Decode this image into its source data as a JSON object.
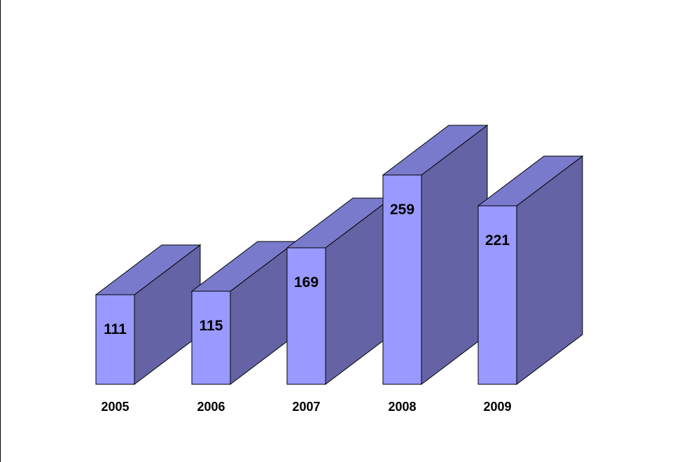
{
  "chart_data": {
    "type": "bar",
    "style": "3d",
    "categories": [
      "2005",
      "2006",
      "2007",
      "2008",
      "2009"
    ],
    "values": [
      111,
      115,
      169,
      259,
      221
    ],
    "title": "",
    "xlabel": "",
    "ylabel": "",
    "grid": false,
    "legend": "none",
    "colors": {
      "front": "#9999ff",
      "top": "#7a7acc",
      "side": "#6363a5",
      "outline": "#000000"
    }
  }
}
